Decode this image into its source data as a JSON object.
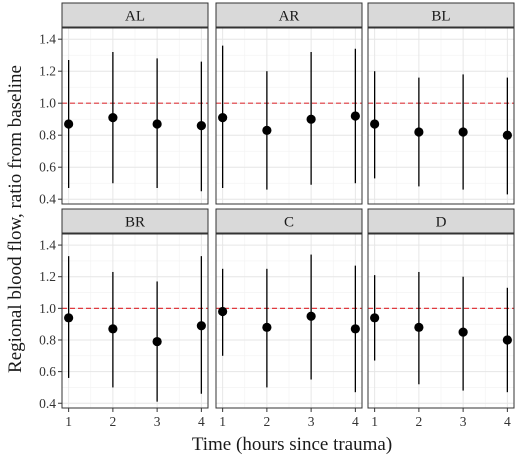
{
  "chart_data": {
    "type": "scatter",
    "subtype": "point-range facet grid",
    "title": "",
    "xlabel": "Time (hours since trauma)",
    "ylabel": "Regional blood flow, ratio from baseline",
    "x_ticks": [
      1,
      2,
      3,
      4
    ],
    "y_ticks": [
      "0.4",
      "0.6",
      "0.8",
      "1.0",
      "1.2",
      "1.4"
    ],
    "xlim": [
      0.85,
      4.15
    ],
    "ylim": [
      0.37,
      1.47
    ],
    "grid": true,
    "reference_line": {
      "y": 1.0,
      "style": "dashed",
      "color": "#e0393e"
    },
    "point_color": "#000000",
    "strip_fill": "#d9d9d9",
    "panels": [
      {
        "label": "AL",
        "points": [
          {
            "x": 1,
            "y": 0.87,
            "lower": 0.47,
            "upper": 1.27
          },
          {
            "x": 2,
            "y": 0.91,
            "lower": 0.5,
            "upper": 1.32
          },
          {
            "x": 3,
            "y": 0.87,
            "lower": 0.47,
            "upper": 1.28
          },
          {
            "x": 4,
            "y": 0.86,
            "lower": 0.45,
            "upper": 1.26
          }
        ]
      },
      {
        "label": "AR",
        "points": [
          {
            "x": 1,
            "y": 0.91,
            "lower": 0.47,
            "upper": 1.36
          },
          {
            "x": 2,
            "y": 0.83,
            "lower": 0.46,
            "upper": 1.2
          },
          {
            "x": 3,
            "y": 0.9,
            "lower": 0.49,
            "upper": 1.32
          },
          {
            "x": 4,
            "y": 0.92,
            "lower": 0.5,
            "upper": 1.34
          }
        ]
      },
      {
        "label": "BL",
        "points": [
          {
            "x": 1,
            "y": 0.87,
            "lower": 0.53,
            "upper": 1.2
          },
          {
            "x": 2,
            "y": 0.82,
            "lower": 0.48,
            "upper": 1.16
          },
          {
            "x": 3,
            "y": 0.82,
            "lower": 0.46,
            "upper": 1.18
          },
          {
            "x": 4,
            "y": 0.8,
            "lower": 0.43,
            "upper": 1.16
          }
        ]
      },
      {
        "label": "BR",
        "points": [
          {
            "x": 1,
            "y": 0.94,
            "lower": 0.56,
            "upper": 1.33
          },
          {
            "x": 2,
            "y": 0.87,
            "lower": 0.5,
            "upper": 1.23
          },
          {
            "x": 3,
            "y": 0.79,
            "lower": 0.41,
            "upper": 1.17
          },
          {
            "x": 4,
            "y": 0.89,
            "lower": 0.46,
            "upper": 1.33
          }
        ]
      },
      {
        "label": "C",
        "points": [
          {
            "x": 1,
            "y": 0.98,
            "lower": 0.7,
            "upper": 1.25
          },
          {
            "x": 2,
            "y": 0.88,
            "lower": 0.5,
            "upper": 1.25
          },
          {
            "x": 3,
            "y": 0.95,
            "lower": 0.55,
            "upper": 1.34
          },
          {
            "x": 4,
            "y": 0.87,
            "lower": 0.47,
            "upper": 1.27
          }
        ]
      },
      {
        "label": "D",
        "points": [
          {
            "x": 1,
            "y": 0.94,
            "lower": 0.67,
            "upper": 1.21
          },
          {
            "x": 2,
            "y": 0.88,
            "lower": 0.52,
            "upper": 1.23
          },
          {
            "x": 3,
            "y": 0.85,
            "lower": 0.48,
            "upper": 1.2
          },
          {
            "x": 4,
            "y": 0.8,
            "lower": 0.47,
            "upper": 1.13
          }
        ]
      }
    ]
  }
}
